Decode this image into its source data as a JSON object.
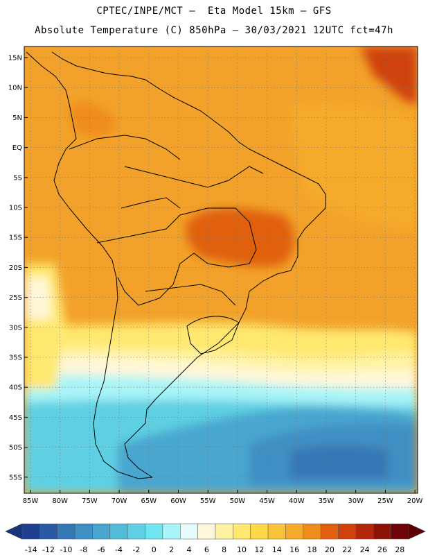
{
  "header": {
    "line1": "CPTEC/INPE/MCT –  Eta Model 15km – GFS",
    "line2": "Absolute Temperature (C) 850hPa – 30/03/2021 12UTC fct=47h"
  },
  "map": {
    "lat_labels": [
      "15N",
      "10N",
      "5N",
      "EQ",
      "5S",
      "10S",
      "15S",
      "20S",
      "25S",
      "30S",
      "35S",
      "40S",
      "45S",
      "50S",
      "55S"
    ],
    "lon_labels": [
      "85W",
      "80W",
      "75W",
      "70W",
      "65W",
      "60W",
      "55W",
      "50W",
      "45W",
      "40W",
      "35W",
      "30W",
      "25W",
      "20W"
    ],
    "gridlines": true
  },
  "colorbar": {
    "labels": [
      "-14",
      "-12",
      "-10",
      "-8",
      "-6",
      "-4",
      "-2",
      "0",
      "2",
      "4",
      "6",
      "8",
      "10",
      "12",
      "14",
      "16",
      "18",
      "20",
      "22",
      "24",
      "26",
      "28"
    ],
    "colors": [
      "#1f3f8f",
      "#2a5aa6",
      "#3576b5",
      "#3f8fc4",
      "#48a6cf",
      "#52bcd9",
      "#5fd0e3",
      "#72e6f0",
      "#a9f4f7",
      "#e6fbfb",
      "#fff7d9",
      "#fff3a3",
      "#ffe870",
      "#ffd84a",
      "#f9c33a",
      "#f5aa2a",
      "#ef8c1c",
      "#e06010",
      "#cf420e",
      "#b3260c",
      "#8c1208",
      "#6e0406"
    ],
    "arrow_left_color": "#17347d",
    "arrow_right_color": "#5e0008"
  }
}
